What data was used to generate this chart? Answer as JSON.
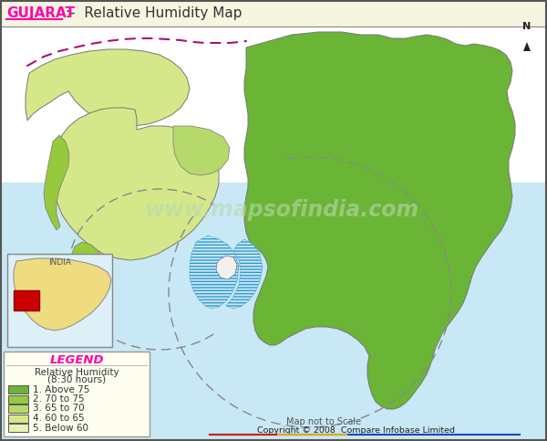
{
  "title_gujarat": "GUJARAT",
  "title_rest": ":-  Relative Humidity Map",
  "background_color": "#c8e8f5",
  "map_bg_white": "#ffffff",
  "legend_title": "LEGEND",
  "legend_items": [
    {
      "label": "1. Above 75",
      "color": "#6ab535"
    },
    {
      "label": "2. 70 to 75",
      "color": "#96c93d"
    },
    {
      "label": "3. 65 to 70",
      "color": "#b5d96b"
    },
    {
      "label": "4. 60 to 65",
      "color": "#d4e88a"
    },
    {
      "label": "5. Below 60",
      "color": "#e8f2b8"
    }
  ],
  "water_color": "#c8e8f5",
  "hatch_color": "#3399cc",
  "border_color": "#777777",
  "title_bg": "#f5f5e0",
  "compass_color": "#222222",
  "copyright_text": "Copyright © 2008  Compare Infobase Limited",
  "scale_text": "Map not to Scale",
  "pak_border_color": "#aa1177",
  "dashed_inner_color": "#888888",
  "india_bg": "#f0e090",
  "india_water": "#aaddee",
  "gujarat_marker": "#cc0000"
}
